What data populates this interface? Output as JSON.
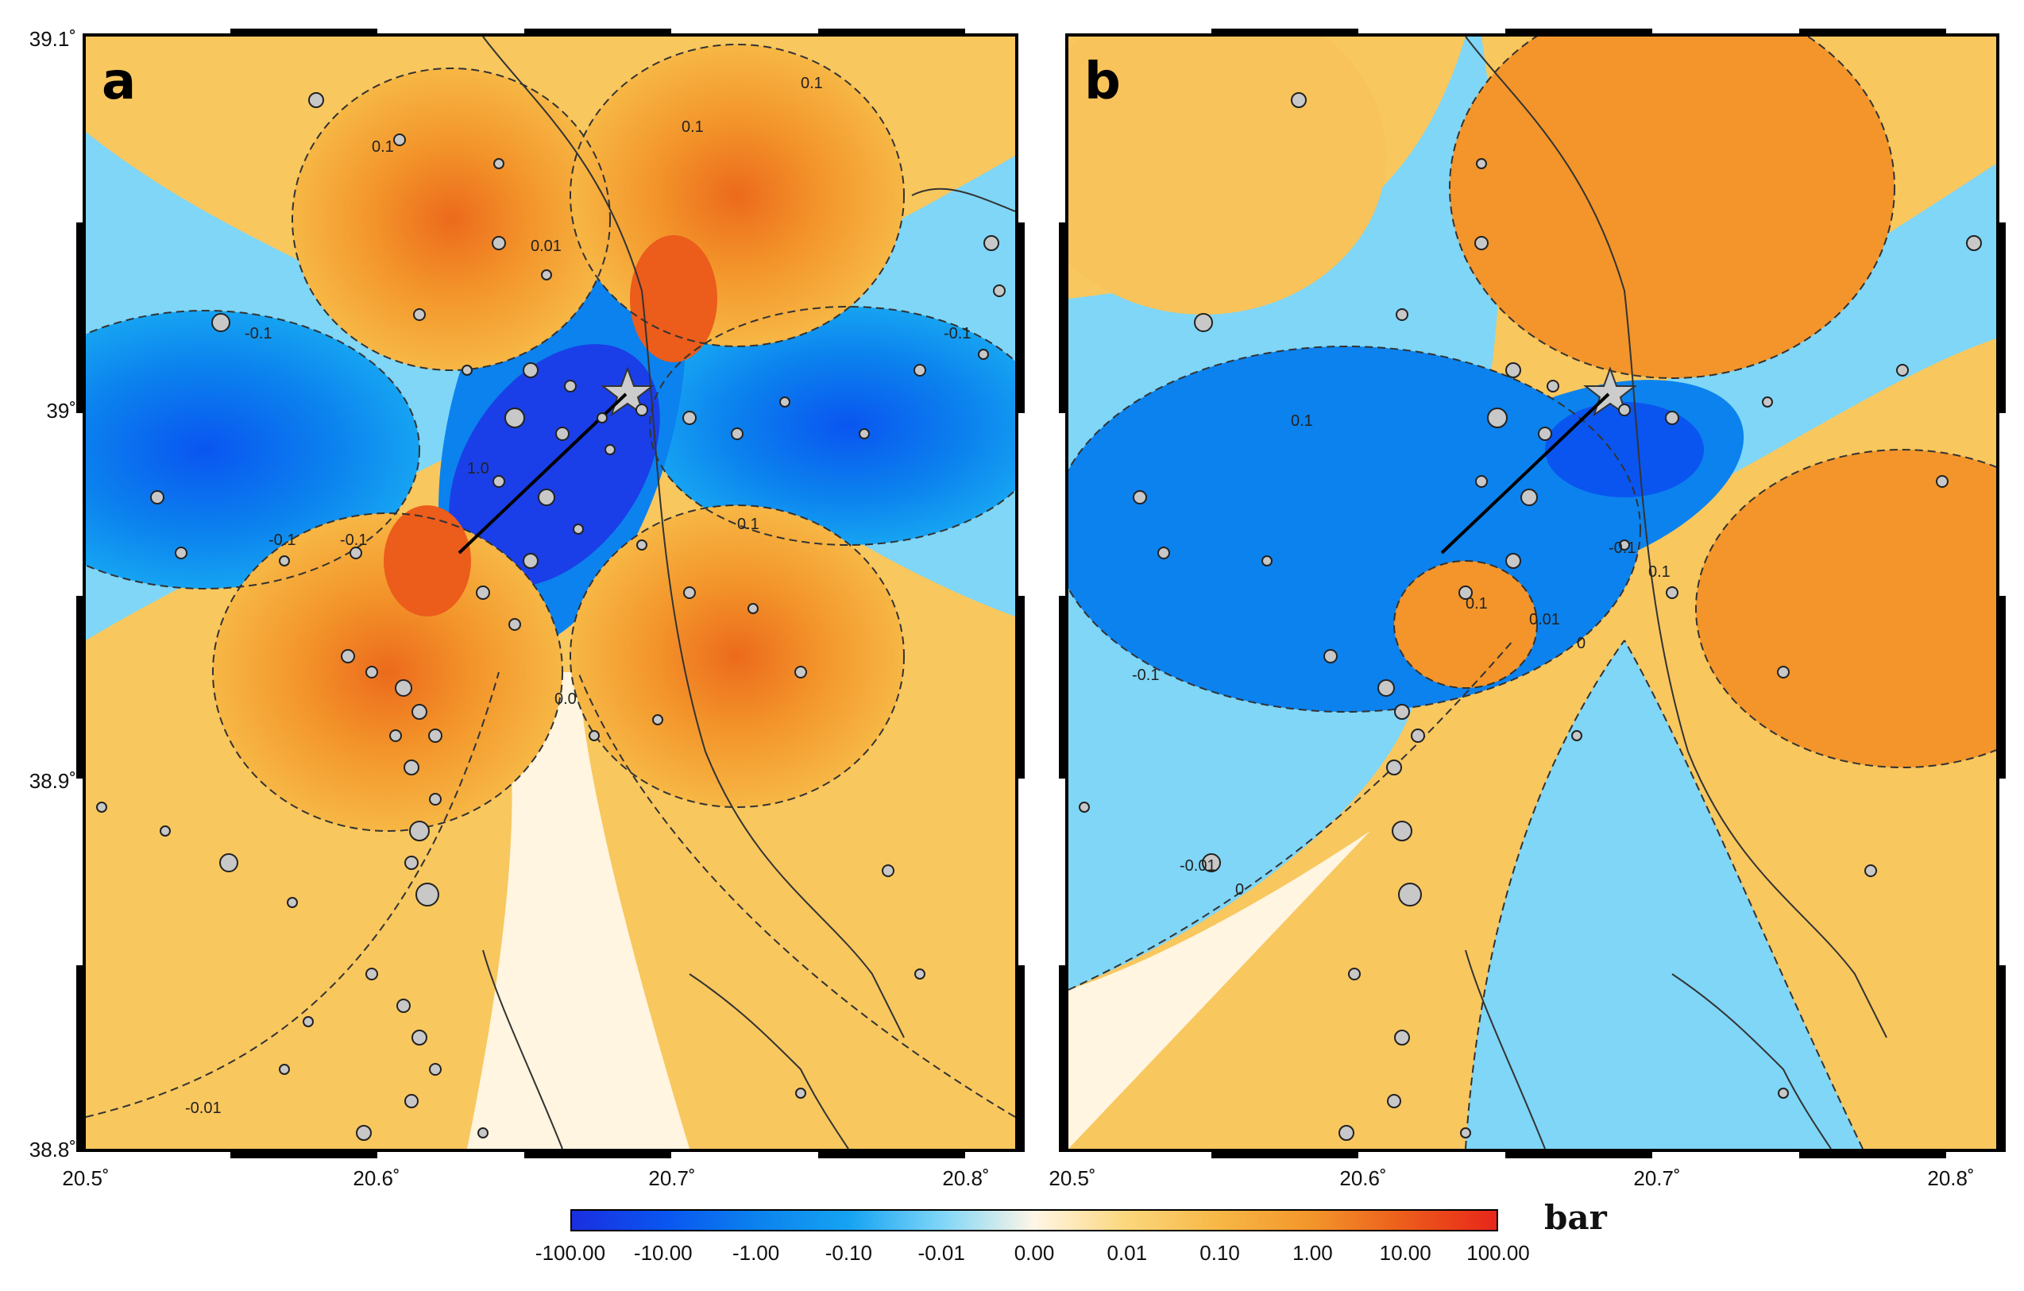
{
  "panels": [
    {
      "id": "a",
      "letter": "a"
    },
    {
      "id": "b",
      "letter": "b"
    }
  ],
  "axes": {
    "y_ticks": [
      "39.1˚",
      "39˚",
      "38.9˚",
      "38.8˚"
    ],
    "x_ticks_a": [
      "20.5˚",
      "20.6˚",
      "20.7˚",
      "20.8˚"
    ],
    "x_ticks_b": [
      "20.5˚",
      "20.6˚",
      "20.7˚",
      "20.8˚"
    ]
  },
  "colorbar": {
    "unit": "bar",
    "ticks": [
      "-100.00",
      "-10.00",
      "-1.00",
      "-0.10",
      "-0.01",
      "0.00",
      "0.01",
      "0.10",
      "1.00",
      "10.00",
      "100.00"
    ],
    "colors": [
      "#1a2fe0",
      "#0a55f0",
      "#0b82ee",
      "#16a3f2",
      "#7fd6f7",
      "#fff6e6",
      "#fbd77c",
      "#f7b745",
      "#f3952a",
      "#ec5c1b",
      "#e8261a"
    ]
  },
  "contour_labels_a": [
    "0.1",
    "0.1",
    "0.1",
    "-0.1",
    "-0.1",
    "-0.1",
    "-0.1",
    "0.01",
    "-0.01",
    "0.0",
    "0.1",
    "1.0"
  ],
  "contour_labels_b": [
    "0.1",
    "-0.1",
    "-0.1",
    "0.1",
    "-0.01",
    "0",
    "0.01",
    "0.1",
    "0"
  ],
  "epicenter": {
    "symbol": "star"
  }
}
